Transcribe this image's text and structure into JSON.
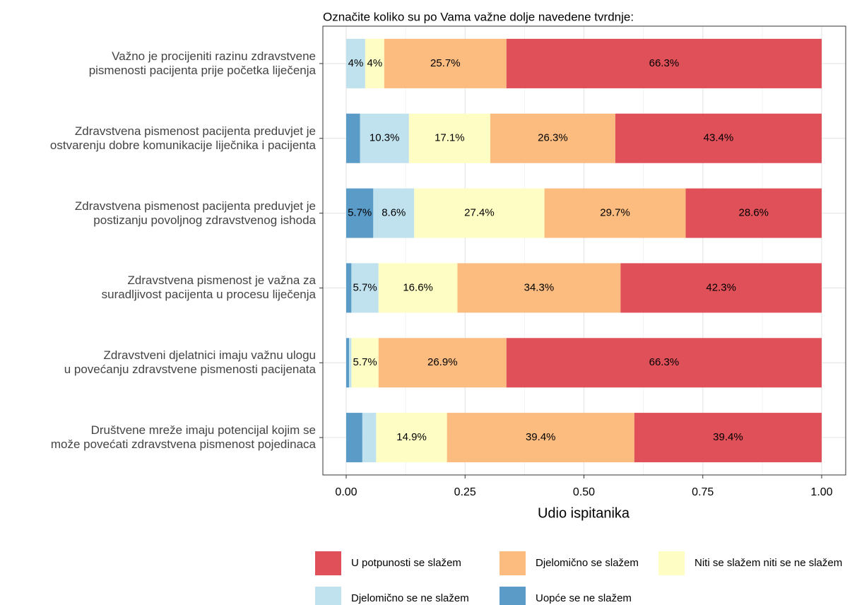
{
  "chart_data": {
    "type": "stacked_barh",
    "title": "Označite koliko su po Vama važne dolje navedene tvrdnje:",
    "xlabel": "Udio ispitanika",
    "categories": [
      "Važno je procijeniti razinu zdravstvene\npismenosti pacijenta prije početka liječenja",
      "Zdravstvena pismenost pacijenta preduvjet je\nostvarenju dobre komunikacije liječnika i pacijenta",
      "Zdravstvena pismenost pacijenta preduvjet je\npostizanju povoljnog zdravstvenog ishoda",
      "Zdravstvena pismenost je važna za\nsuradljivost pacijenta u procesu liječenja",
      "Zdravstveni djelatnici imaju važnu ulogu\nu povećanju zdravstvene pismenosti pacijenata",
      "Društvene mreže imaju potencijal kojim se\nmože povećati zdravstvena pismenost pojedinaca"
    ],
    "series": [
      {
        "name": "Uopće se ne slažem",
        "color": "#5b9bc8",
        "values": [
          0,
          0.029,
          0.057,
          0.011,
          0.006,
          0.034
        ],
        "value_labels": [
          null,
          null,
          "5.7%",
          null,
          null,
          null
        ]
      },
      {
        "name": "Djelomično se ne slažem",
        "color": "#c0e2ee",
        "values": [
          0.04,
          0.103,
          0.086,
          0.057,
          0.005,
          0.029
        ],
        "value_labels": [
          "4%",
          "10.3%",
          "8.6%",
          "5.7%",
          null,
          null
        ]
      },
      {
        "name": "Niti se slažem niti se ne slažem",
        "color": "#fefdc4",
        "values": [
          0.04,
          0.171,
          0.274,
          0.166,
          0.057,
          0.149
        ],
        "value_labels": [
          "4%",
          "17.1%",
          "27.4%",
          "16.6%",
          "5.7%",
          "14.9%"
        ]
      },
      {
        "name": "Djelomično se slažem",
        "color": "#fcbc80",
        "values": [
          0.257,
          0.263,
          0.297,
          0.343,
          0.269,
          0.394
        ],
        "value_labels": [
          "25.7%",
          "26.3%",
          "29.7%",
          "34.3%",
          "26.9%",
          "39.4%"
        ]
      },
      {
        "name": "U potpunosti se slažem",
        "color": "#e05058",
        "values": [
          0.663,
          0.434,
          0.286,
          0.423,
          0.663,
          0.394
        ],
        "value_labels": [
          "66.3%",
          "43.4%",
          "28.6%",
          "42.3%",
          "66.3%",
          "39.4%"
        ]
      }
    ],
    "xlim": [
      0,
      1
    ],
    "xticks": [
      {
        "value": 0,
        "label": "0.00"
      },
      {
        "value": 0.25,
        "label": "0.25"
      },
      {
        "value": 0.5,
        "label": "0.50"
      },
      {
        "value": 0.75,
        "label": "0.75"
      },
      {
        "value": 1,
        "label": "1.00"
      }
    ],
    "grid": true,
    "legend": "bottom"
  }
}
